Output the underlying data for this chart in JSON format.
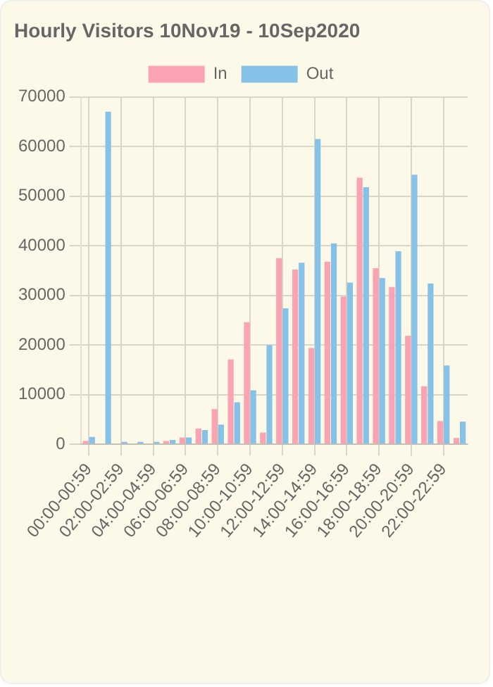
{
  "chart_data": {
    "type": "bar",
    "title": "Hourly Visitors 10Nov19 - 10Sep2020",
    "categories": [
      "00:00-00:59",
      null,
      "02:00-02:59",
      null,
      "04:00-04:59",
      null,
      "06:00-06:59",
      null,
      "08:00-08:59",
      null,
      "10:00-10:59",
      null,
      "12:00-12:59",
      null,
      "14:00-14:59",
      null,
      "16:00-16:59",
      null,
      "18:00-18:59",
      null,
      "20:00-20:59",
      null,
      "22:00-22:59",
      null
    ],
    "series": [
      {
        "name": "In",
        "color": "#f9a3b3",
        "values": [
          700,
          0,
          0,
          0,
          0,
          700,
          1400,
          3200,
          7100,
          17100,
          24600,
          2400,
          37500,
          35200,
          19400,
          36800,
          29800,
          53700,
          35500,
          31700,
          21900,
          11700,
          4700,
          1300
        ]
      },
      {
        "name": "Out",
        "color": "#86c1e8",
        "values": [
          1500,
          67000,
          500,
          500,
          500,
          900,
          1400,
          2900,
          4000,
          8500,
          10900,
          20000,
          27400,
          36600,
          61500,
          40500,
          32600,
          51800,
          33500,
          38900,
          54300,
          32400,
          15900,
          4600
        ]
      }
    ],
    "ylim": [
      0,
      70000
    ],
    "yticks": [
      0,
      10000,
      20000,
      30000,
      40000,
      50000,
      60000,
      70000
    ],
    "grid": true,
    "legend": "top"
  }
}
